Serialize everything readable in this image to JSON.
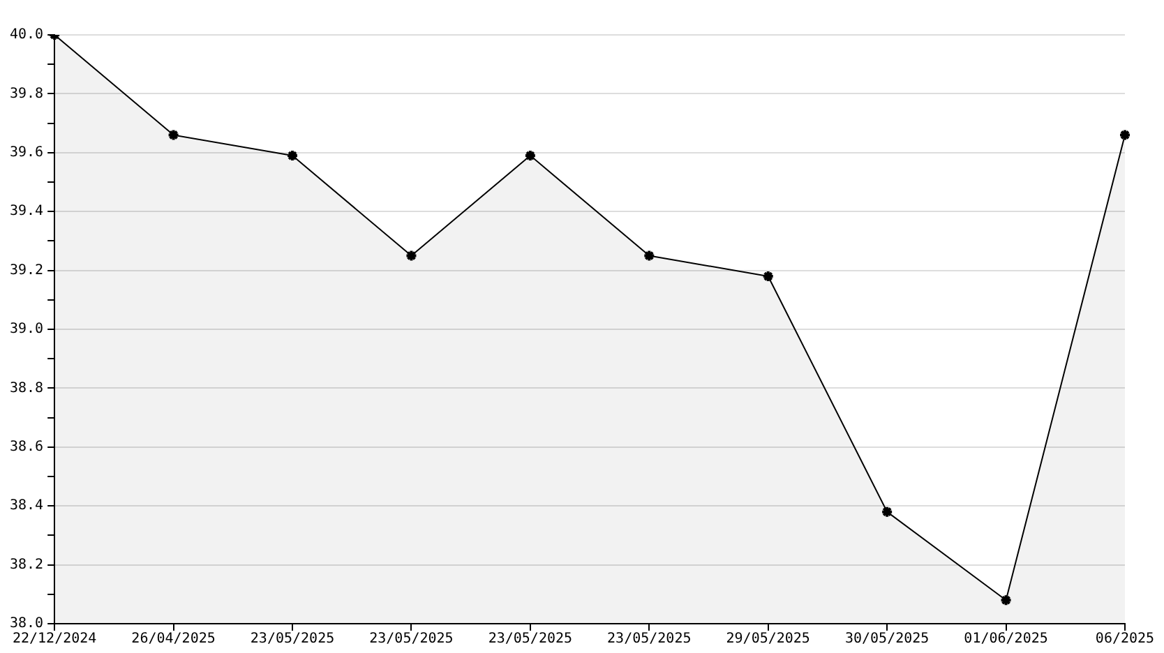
{
  "chart_data": {
    "type": "area",
    "categories": [
      "22/12/2024",
      "26/04/2025",
      "23/05/2025",
      "23/05/2025",
      "23/05/2025",
      "23/05/2025",
      "29/05/2025",
      "30/05/2025",
      "01/06/2025",
      "06/2025"
    ],
    "series": [
      {
        "color": "#000000",
        "values": [
          40.0,
          39.66,
          39.59,
          39.25,
          39.59,
          39.25,
          39.18,
          38.38,
          38.08,
          39.66
        ]
      }
    ],
    "ylim": [
      38,
      40
    ],
    "yticks": [
      {
        "value": 38,
        "label": "38.0"
      },
      {
        "value": 38.1,
        "label": null
      },
      38.2,
      {
        "value": 38.3,
        "label": null
      },
      38.4,
      {
        "value": 38.5,
        "label": null
      },
      38.6,
      {
        "value": 38.7,
        "label": null
      },
      38.8,
      {
        "value": 38.9,
        "label": null
      },
      {
        "value": 39,
        "label": "39.0"
      },
      {
        "value": 39.1,
        "label": null
      },
      39.2,
      {
        "value": 39.3,
        "label": null
      },
      39.4,
      {
        "value": 39.5,
        "label": null
      },
      39.6,
      {
        "value": 39.7,
        "label": null
      },
      39.8,
      {
        "value": 39.9,
        "label": null
      },
      {
        "value": 40,
        "label": "40.0"
      }
    ],
    "grid": "y",
    "legend": false,
    "marker": "cross",
    "line_style": "solid"
  }
}
